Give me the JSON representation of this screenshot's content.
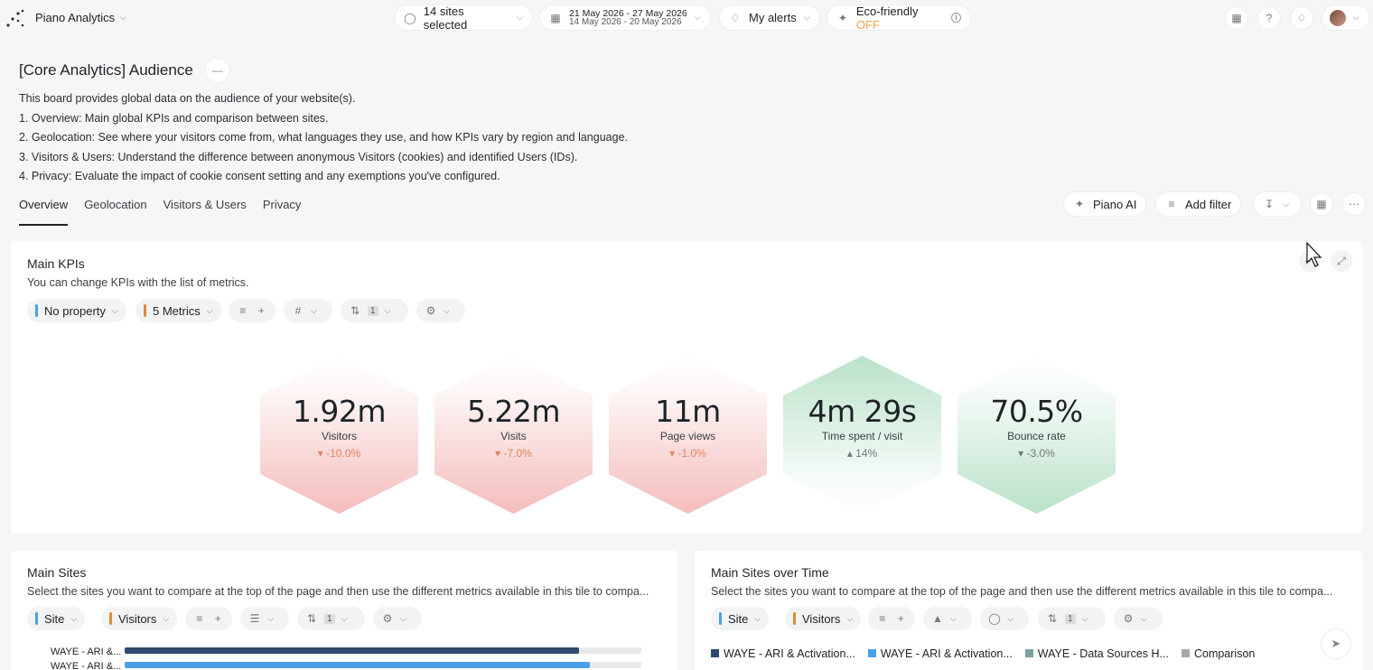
{
  "app": {
    "name": "Piano Analytics"
  },
  "topbar": {
    "sites": "14 sites selected",
    "date_current": "21 May 2026 - 27 May 2026",
    "date_compare": "14 May 2026 - 20 May 2026",
    "alerts": "My alerts",
    "eco_label": "Eco-friendly",
    "eco_state": "OFF"
  },
  "board": {
    "title": "[Core Analytics] Audience",
    "description": [
      "This board provides global data on the audience of your website(s).",
      "1. Overview: Main global KPIs and comparison between sites.",
      "2. Geolocation: See where your visitors come from, what languages they use, and how KPIs vary by region and language.",
      "3. Visitors & Users: Understand the difference between anonymous Visitors (cookies) and identified Users (IDs).",
      "4. Privacy: Evaluate the impact of cookie consent setting and any exemptions you've configured."
    ],
    "tabs": [
      "Overview",
      "Geolocation",
      "Visitors & Users",
      "Privacy"
    ],
    "piano_ai": "Piano AI",
    "add_filter": "Add filter"
  },
  "kpi_panel": {
    "title": "Main KPIs",
    "subtitle": "You can change KPIs with the list of metrics.",
    "property_chip": "No property",
    "metrics_chip": "5 Metrics",
    "sort_count": "1",
    "kpis": [
      {
        "value": "1.92m",
        "label": "Visitors",
        "change": "-10.0%",
        "trend": "down",
        "tone": "negative"
      },
      {
        "value": "5.22m",
        "label": "Visits",
        "change": "-7.0%",
        "trend": "down",
        "tone": "negative"
      },
      {
        "value": "11m",
        "label": "Page views",
        "change": "-1.0%",
        "trend": "down",
        "tone": "negative"
      },
      {
        "value": "4m 29s",
        "label": "Time spent / visit",
        "change": "14%",
        "trend": "up",
        "tone": "positive"
      },
      {
        "value": "70.5%",
        "label": "Bounce rate",
        "change": "-3.0%",
        "trend": "down",
        "tone": "positive"
      }
    ]
  },
  "sites_panel": {
    "title": "Main Sites",
    "subtitle": "Select the sites you want to compare at the top of the page and then use the different metrics available in this tile to compa...",
    "chip_site": "Site",
    "chip_metric": "Visitors",
    "sort_count": "1",
    "rows": [
      {
        "label": "WAYE - ARI &...",
        "fraction": 0.88
      },
      {
        "label": "WAYE - ARI &...",
        "fraction": 0.9
      }
    ]
  },
  "time_panel": {
    "title": "Main Sites over Time",
    "subtitle": "Select the sites you want to compare at the top of the page and then use the different metrics available in this tile to compa...",
    "chip_site": "Site",
    "chip_metric": "Visitors",
    "sort_count": "1",
    "legend": [
      {
        "label": "WAYE - ARI & Activation...",
        "color": "#2e4a6e"
      },
      {
        "label": "WAYE - ARI & Activation...",
        "color": "#4aa0e6"
      },
      {
        "label": "WAYE - Data Sources H...",
        "color": "#7aa3a0"
      },
      {
        "label": "Comparison",
        "color": "#a7a7a7"
      }
    ]
  },
  "colors": {
    "negative_hex": "#f5c2c2",
    "positive_hex": "#bfe3cd",
    "accent_orange": "#f0a44b"
  }
}
